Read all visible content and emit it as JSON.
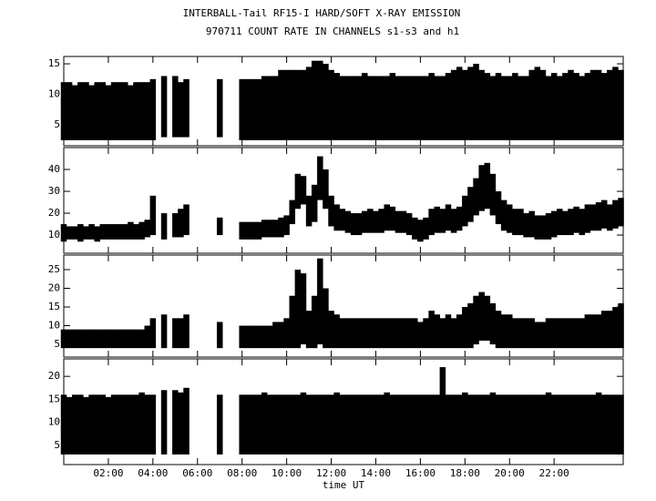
{
  "chart_data": {
    "type": "range",
    "title": "INTERBALL-Tail RF15-I HARD/SOFT X-RAY EMISSION",
    "subtitle": "970711  COUNT RATE IN CHANNELS s1-s3 and h1",
    "xlabel": "time UT",
    "xlim": [
      0,
      25.1
    ],
    "xticks": [
      {
        "value": 2,
        "label": "02:00"
      },
      {
        "value": 4,
        "label": "04:00"
      },
      {
        "value": 6,
        "label": "06:00"
      },
      {
        "value": 8,
        "label": "08:00"
      },
      {
        "value": 10,
        "label": "10:00"
      },
      {
        "value": 12,
        "label": "12:00"
      },
      {
        "value": 14,
        "label": "14:00"
      },
      {
        "value": 16,
        "label": "16:00"
      },
      {
        "value": 18,
        "label": "18:00"
      },
      {
        "value": 20,
        "label": "20:00"
      },
      {
        "value": 22,
        "label": "22:00"
      }
    ],
    "x": [
      0,
      0.25,
      0.5,
      0.75,
      1,
      1.25,
      1.5,
      1.75,
      2,
      2.25,
      2.5,
      2.75,
      3,
      3.25,
      3.5,
      3.75,
      4,
      4.25,
      4.5,
      4.75,
      5,
      5.25,
      5.5,
      5.75,
      6,
      6.25,
      6.5,
      6.75,
      7,
      7.25,
      7.5,
      7.75,
      8,
      8.25,
      8.5,
      8.75,
      9,
      9.25,
      9.5,
      9.75,
      10,
      10.25,
      10.5,
      10.75,
      11,
      11.25,
      11.5,
      11.75,
      12,
      12.25,
      12.5,
      12.75,
      13,
      13.25,
      13.5,
      13.75,
      14,
      14.25,
      14.5,
      14.75,
      15,
      15.25,
      15.5,
      15.75,
      16,
      16.25,
      16.5,
      16.75,
      17,
      17.25,
      17.5,
      17.75,
      18,
      18.25,
      18.5,
      18.75,
      19,
      19.25,
      19.5,
      19.75,
      20,
      20.25,
      20.5,
      20.75,
      21,
      21.25,
      21.5,
      21.75,
      22,
      22.25,
      22.5,
      22.75,
      23,
      23.25,
      23.5,
      23.75,
      24,
      24.25,
      24.5,
      24.75,
      25
    ],
    "panels": [
      {
        "ylim": [
          1.6,
          16.2
        ],
        "yticks": [
          5,
          10,
          15
        ],
        "series": [
          {
            "color": "#000000",
            "values": [
              2.5,
              2.5,
              2.5,
              2.5,
              2.5,
              2.5,
              2.5,
              2.5,
              2.5,
              2.5,
              2.5,
              2.5,
              2.5,
              2.5,
              2.5,
              2.5,
              2.5,
              null,
              3,
              null,
              3,
              3,
              3,
              null,
              null,
              null,
              null,
              null,
              3,
              null,
              null,
              null,
              2.5,
              2.5,
              2.5,
              2.5,
              2.5,
              2.5,
              2.5,
              2.5,
              2.5,
              2.5,
              2.5,
              2.5,
              2.5,
              2.5,
              2.5,
              2.5,
              2.5,
              2.5,
              2.5,
              2.5,
              2.5,
              2.5,
              2.5,
              2.5,
              2.5,
              2.5,
              2.5,
              2.5,
              2.5,
              2.5,
              2.5,
              2.5,
              2.5,
              2.5,
              2.5,
              2.5,
              2.5,
              2.5,
              2.5,
              2.5,
              2.5,
              2.5,
              2.5,
              2.5,
              2.5,
              2.5,
              2.5,
              2.5,
              2.5,
              2.5,
              2.5,
              2.5,
              2.5,
              2.5,
              2.5,
              2.5,
              2.5,
              2.5,
              2.5,
              2.5,
              2.5,
              2.5,
              2.5,
              2.5,
              2.5,
              2.5,
              2.5,
              2.5,
              2.5
            ]
          },
          {
            "color": "#000000",
            "values": [
              12,
              12,
              11.5,
              12,
              12,
              11.5,
              12,
              12,
              11.5,
              12,
              12,
              12,
              11.5,
              12,
              12,
              12,
              12.5,
              null,
              13,
              null,
              13,
              12,
              12.5,
              null,
              null,
              null,
              null,
              null,
              12.5,
              null,
              null,
              null,
              12.5,
              12.5,
              12.5,
              12.5,
              13,
              13,
              13,
              14,
              14,
              14,
              14,
              14,
              14.5,
              15.5,
              15.5,
              15,
              14,
              13.5,
              13,
              13,
              13,
              13,
              13.5,
              13,
              13,
              13,
              13,
              13.5,
              13,
              13,
              13,
              13,
              13,
              13,
              13.5,
              13,
              13,
              13.5,
              14,
              14.5,
              14,
              14.5,
              15,
              14,
              13.5,
              13,
              13.5,
              13,
              13,
              13.5,
              13,
              13,
              14,
              14.5,
              14,
              13,
              13.5,
              13,
              13.5,
              14,
              13.5,
              13,
              13.5,
              14,
              14,
              13.5,
              14,
              14.5,
              14
            ]
          }
        ]
      },
      {
        "ylim": [
          1.7,
          50
        ],
        "yticks": [
          10,
          20,
          30,
          40
        ],
        "series": [
          {
            "color": "#000000",
            "values": [
              7,
              8,
              8,
              7,
              8,
              8,
              7,
              8,
              8,
              8,
              8,
              8,
              8,
              8,
              8,
              9,
              10,
              null,
              8,
              null,
              9,
              9,
              10,
              null,
              null,
              null,
              null,
              null,
              10,
              null,
              null,
              null,
              8,
              8,
              8,
              8,
              9,
              9,
              9,
              9,
              10,
              15,
              22,
              24,
              14,
              16,
              26,
              22,
              14,
              12,
              12,
              11,
              10,
              10,
              11,
              11,
              11,
              11,
              12,
              12,
              11,
              11,
              10,
              8,
              7,
              8,
              10,
              11,
              11,
              12,
              11,
              12,
              14,
              16,
              19,
              21,
              22,
              19,
              15,
              12,
              11,
              10,
              10,
              9,
              9,
              8,
              8,
              8,
              9,
              10,
              10,
              10,
              11,
              10,
              11,
              12,
              12,
              13,
              12,
              13,
              14
            ]
          },
          {
            "color": "#000000",
            "values": [
              15,
              14,
              14,
              15,
              14,
              15,
              14,
              15,
              15,
              15,
              15,
              15,
              16,
              15,
              16,
              17,
              28,
              null,
              20,
              null,
              20,
              22,
              24,
              null,
              null,
              null,
              null,
              null,
              18,
              null,
              null,
              null,
              16,
              16,
              16,
              16,
              17,
              17,
              17,
              18,
              19,
              26,
              38,
              37,
              28,
              33,
              46,
              40,
              28,
              24,
              22,
              21,
              20,
              20,
              21,
              22,
              21,
              22,
              24,
              23,
              21,
              21,
              20,
              18,
              17,
              18,
              22,
              23,
              22,
              24,
              22,
              23,
              28,
              32,
              36,
              42,
              43,
              38,
              30,
              26,
              24,
              22,
              22,
              20,
              21,
              19,
              19,
              20,
              21,
              22,
              21,
              22,
              23,
              22,
              24,
              24,
              25,
              26,
              24,
              26,
              27
            ]
          }
        ]
      },
      {
        "ylim": [
          1.6,
          28.9
        ],
        "yticks": [
          5,
          10,
          15,
          20,
          25
        ],
        "series": [
          {
            "color": "#000000",
            "values": [
              4,
              4,
              4,
              4,
              4,
              4,
              4,
              4,
              4,
              4,
              4,
              4,
              4,
              4,
              4,
              4,
              4,
              null,
              4,
              null,
              4,
              4,
              4,
              null,
              null,
              null,
              null,
              null,
              4,
              null,
              null,
              null,
              4,
              4,
              4,
              4,
              4,
              4,
              4,
              4,
              4,
              4,
              4,
              5,
              4,
              4,
              5,
              4,
              4,
              4,
              4,
              4,
              4,
              4,
              4,
              4,
              4,
              4,
              4,
              4,
              4,
              4,
              4,
              4,
              4,
              4,
              4,
              4,
              4,
              4,
              4,
              4,
              4,
              4,
              5,
              6,
              6,
              5,
              4,
              4,
              4,
              4,
              4,
              4,
              4,
              4,
              4,
              4,
              4,
              4,
              4,
              4,
              4,
              4,
              4,
              4,
              4,
              4,
              4,
              4,
              4
            ]
          },
          {
            "color": "#000000",
            "values": [
              9,
              9,
              9,
              9,
              9,
              9,
              9,
              9,
              9,
              9,
              9,
              9,
              9,
              9,
              9,
              10,
              12,
              null,
              13,
              null,
              12,
              12,
              13,
              null,
              null,
              null,
              null,
              null,
              11,
              null,
              null,
              null,
              10,
              10,
              10,
              10,
              10,
              10,
              11,
              11,
              12,
              18,
              25,
              24,
              14,
              18,
              28,
              20,
              14,
              13,
              12,
              12,
              12,
              12,
              12,
              12,
              12,
              12,
              12,
              12,
              12,
              12,
              12,
              12,
              11,
              12,
              14,
              13,
              12,
              13,
              12,
              13,
              15,
              16,
              18,
              19,
              18,
              16,
              14,
              13,
              13,
              12,
              12,
              12,
              12,
              11,
              11,
              12,
              12,
              12,
              12,
              12,
              12,
              12,
              13,
              13,
              13,
              14,
              14,
              15,
              16
            ]
          }
        ]
      },
      {
        "ylim": [
          0.8,
          23.8
        ],
        "yticks": [
          5,
          10,
          15,
          20
        ],
        "series": [
          {
            "color": "#000000",
            "values": [
              3,
              3,
              3,
              3,
              3,
              3,
              3,
              3,
              3,
              3,
              3,
              3,
              3,
              3,
              3,
              3,
              3,
              null,
              3,
              null,
              3,
              3,
              3,
              null,
              null,
              null,
              null,
              null,
              3,
              null,
              null,
              null,
              3,
              3,
              3,
              3,
              3,
              3,
              3,
              3,
              3,
              3,
              3,
              3,
              3,
              3,
              3,
              3,
              3,
              3,
              3,
              3,
              3,
              3,
              3,
              3,
              3,
              3,
              3,
              3,
              3,
              3,
              3,
              3,
              3,
              3,
              3,
              3,
              3,
              3,
              3,
              3,
              3,
              3,
              3,
              3,
              3,
              3,
              3,
              3,
              3,
              3,
              3,
              3,
              3,
              3,
              3,
              3,
              3,
              3,
              3,
              3,
              3,
              3,
              3,
              3,
              3,
              3,
              3,
              3,
              3
            ]
          },
          {
            "color": "#000000",
            "values": [
              16,
              15.5,
              16,
              16,
              15.5,
              16,
              16,
              16,
              15.5,
              16,
              16,
              16,
              16,
              16,
              16.5,
              16,
              16,
              null,
              17,
              null,
              17,
              16.5,
              17.5,
              null,
              null,
              null,
              null,
              null,
              16,
              null,
              null,
              null,
              16,
              16,
              16,
              16,
              16.5,
              16,
              16,
              16,
              16,
              16,
              16,
              16.5,
              16,
              16,
              16,
              16,
              16,
              16.5,
              16,
              16,
              16,
              16,
              16,
              16,
              16,
              16,
              16.5,
              16,
              16,
              16,
              16,
              16,
              16,
              16,
              16,
              16,
              22,
              16,
              16,
              16,
              16.5,
              16,
              16,
              16,
              16,
              16.5,
              16,
              16,
              16,
              16,
              16,
              16,
              16,
              16,
              16,
              16.5,
              16,
              16,
              16,
              16,
              16,
              16,
              16,
              16,
              16.5,
              16,
              16,
              16,
              16
            ]
          }
        ]
      }
    ]
  }
}
